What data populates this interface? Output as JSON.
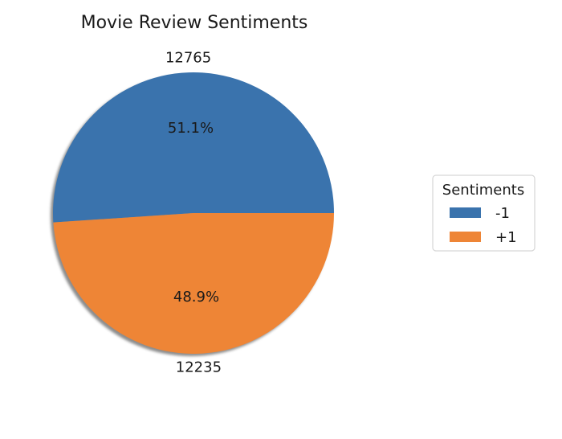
{
  "chart_data": {
    "type": "pie",
    "title": "Movie Review Sentiments",
    "slices": [
      {
        "name": "-1",
        "value": 12765,
        "percent_label": "51.1%",
        "count_label": "12765",
        "color": "#3a73ad"
      },
      {
        "name": "+1",
        "value": 12235,
        "percent_label": "48.9%",
        "count_label": "12235",
        "color": "#ee8536"
      }
    ],
    "start_angle_deg": 0,
    "direction": "counterclockwise",
    "shadow": true,
    "legend": {
      "title": "Sentiments",
      "placement": "center-right"
    }
  }
}
